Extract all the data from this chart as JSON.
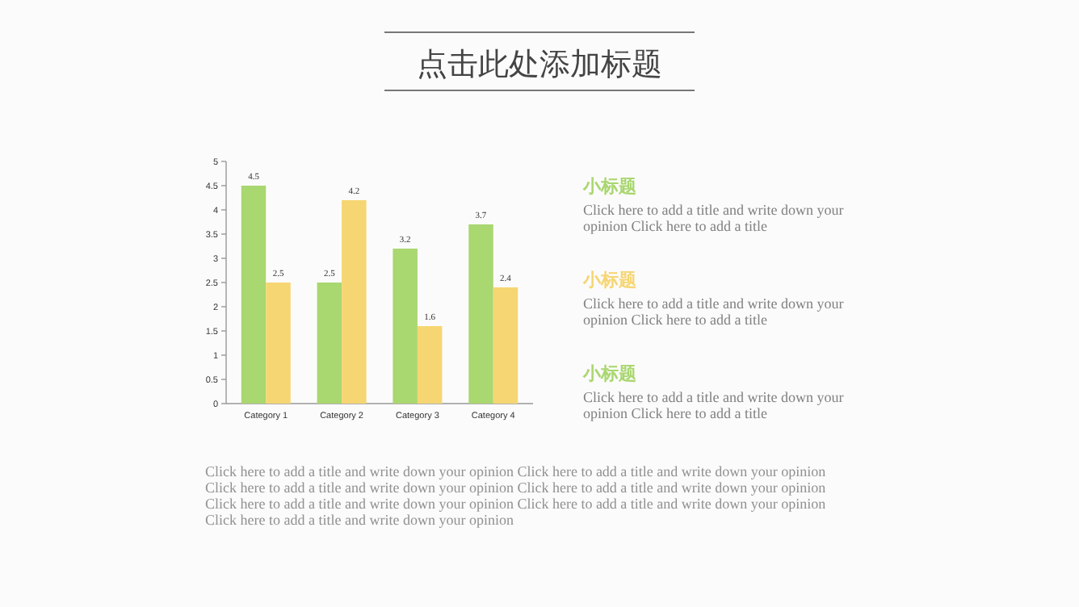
{
  "chart_data": {
    "type": "bar",
    "title": "点击此处添加标题",
    "categories": [
      "Category 1",
      "Category 2",
      "Category 3",
      "Category 4"
    ],
    "series": [
      {
        "color": "#a9d770",
        "values": [
          4.5,
          2.5,
          3.2,
          3.7
        ]
      },
      {
        "color": "#f6d673",
        "values": [
          2.5,
          4.2,
          1.6,
          2.4
        ]
      }
    ],
    "ylim": [
      0,
      5
    ],
    "yticks": [
      0,
      0.5,
      1,
      1.5,
      2,
      2.5,
      3,
      3.5,
      4,
      4.5,
      5
    ],
    "grid": false,
    "data_labels": true,
    "annotations": [
      "小标题",
      "Click here to add a title and write down your opinion Click here to add a title",
      "小标题",
      "Click here to add a title and write down your opinion Click here to add a title",
      "小标题",
      "Click here to add a title and write down your opinion Click here to add a title",
      "Click here to add a title and write down your opinion Click here to add a title and write down your opinion Click here to add a title and write down your opinion Click here to add a title and write down your opinion Click here to add a title and write down your opinion Click here to add a title and write down your opinion Click here to add a title and write down your opinion"
    ]
  }
}
